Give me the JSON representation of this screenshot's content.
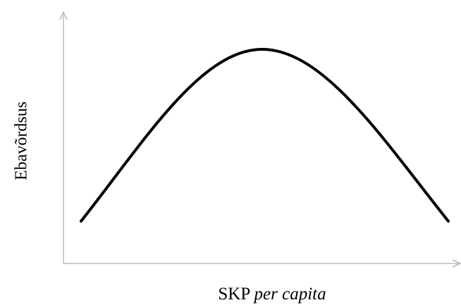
{
  "axes": {
    "y_label": "Ebavõrdsus",
    "x_label": {
      "main": "SKP",
      "italic": "per capita"
    }
  }
}
